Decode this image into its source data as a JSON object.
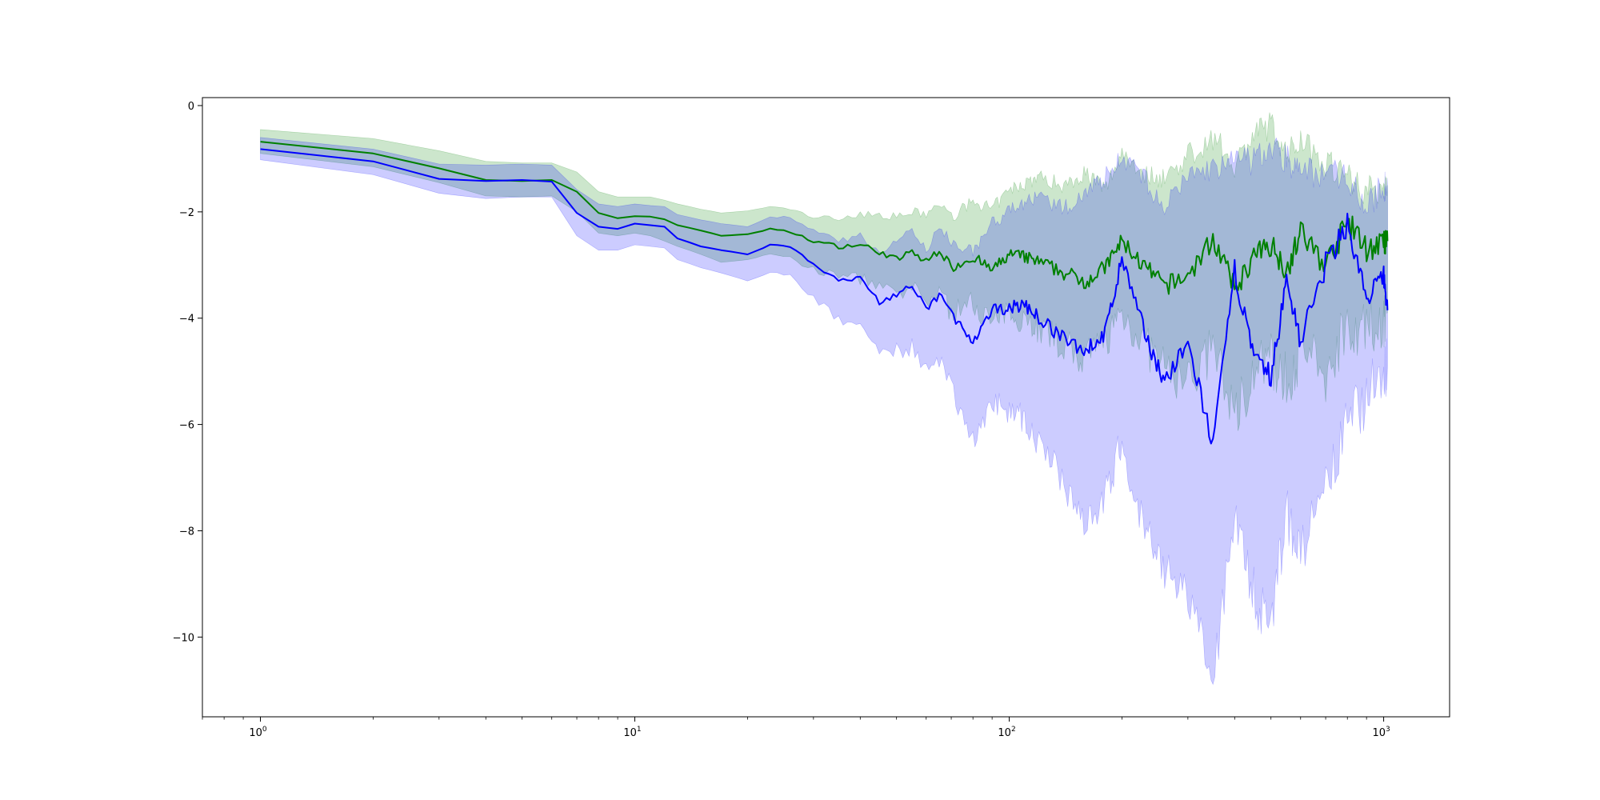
{
  "chart_data": {
    "type": "line",
    "title": "",
    "xlabel": "",
    "ylabel": "",
    "x_scale": "log",
    "xlim": [
      0.7,
      1500
    ],
    "ylim": [
      -11.5,
      0.15
    ],
    "grid": false,
    "legend": "none",
    "x_tick_labels": [
      {
        "base": "10",
        "exp": "0",
        "value": 1
      },
      {
        "base": "10",
        "exp": "1",
        "value": 10
      },
      {
        "base": "10",
        "exp": "2",
        "value": 100
      },
      {
        "base": "10",
        "exp": "3",
        "value": 1000
      }
    ],
    "y_tick_labels": [
      {
        "label": "0",
        "value": 0
      },
      {
        "label": "−2",
        "value": -2
      },
      {
        "label": "−4",
        "value": -4
      },
      {
        "label": "−6",
        "value": -6
      },
      {
        "label": "−8",
        "value": -8
      },
      {
        "label": "−10",
        "value": -10
      }
    ],
    "series": [
      {
        "color": "#008000",
        "band_color": "#008000",
        "band_opacity": 0.2,
        "x": [
          1,
          2,
          3,
          4,
          5,
          6,
          7,
          8,
          9,
          10,
          11,
          12,
          13,
          15,
          17,
          20,
          23,
          26,
          30,
          35,
          40,
          45,
          50,
          55,
          60,
          65,
          70,
          80,
          90,
          100,
          110,
          120,
          140,
          160,
          180,
          200,
          230,
          260,
          300,
          350,
          400,
          450,
          500,
          550,
          600,
          700,
          800,
          900,
          1000,
          1024
        ],
        "mean": [
          -0.68,
          -0.9,
          -1.18,
          -1.4,
          -1.42,
          -1.4,
          -1.62,
          -2.02,
          -2.12,
          -2.08,
          -2.09,
          -2.14,
          -2.25,
          -2.35,
          -2.45,
          -2.42,
          -2.32,
          -2.38,
          -2.55,
          -2.65,
          -2.62,
          -2.75,
          -2.9,
          -2.75,
          -2.95,
          -2.7,
          -3.05,
          -2.85,
          -3.1,
          -2.8,
          -2.85,
          -2.95,
          -3.15,
          -3.3,
          -3.05,
          -2.55,
          -3.05,
          -3.4,
          -3.2,
          -2.5,
          -3.45,
          -2.85,
          -2.6,
          -3.1,
          -2.4,
          -3.0,
          -2.2,
          -2.7,
          -2.6,
          -2.55
        ],
        "lower": [
          -0.9,
          -1.15,
          -1.45,
          -1.7,
          -1.72,
          -1.7,
          -2.0,
          -2.4,
          -2.45,
          -2.4,
          -2.45,
          -2.55,
          -2.65,
          -2.8,
          -2.95,
          -2.9,
          -2.8,
          -2.85,
          -3.1,
          -3.2,
          -3.25,
          -3.4,
          -3.6,
          -3.45,
          -3.7,
          -3.5,
          -3.9,
          -3.7,
          -4.1,
          -3.9,
          -4.0,
          -4.2,
          -4.5,
          -4.8,
          -4.4,
          -3.9,
          -4.5,
          -5.0,
          -5.2,
          -4.6,
          -5.8,
          -5.0,
          -4.8,
          -5.2,
          -4.6,
          -5.1,
          -4.0,
          -4.3,
          -4.0,
          -3.9
        ],
        "upper": [
          -0.45,
          -0.62,
          -0.85,
          -1.05,
          -1.08,
          -1.08,
          -1.25,
          -1.62,
          -1.72,
          -1.72,
          -1.72,
          -1.78,
          -1.85,
          -1.95,
          -2.02,
          -1.98,
          -1.9,
          -1.95,
          -2.1,
          -2.12,
          -2.05,
          -2.05,
          -2.1,
          -2.0,
          -2.05,
          -1.85,
          -2.1,
          -1.8,
          -1.95,
          -1.6,
          -1.45,
          -1.35,
          -1.5,
          -1.25,
          -1.6,
          -0.85,
          -1.3,
          -1.35,
          -0.95,
          -0.6,
          -1.1,
          -0.55,
          -0.35,
          -0.95,
          -0.6,
          -1.05,
          -1.3,
          -1.6,
          -1.55,
          -1.5
        ]
      },
      {
        "color": "#0000ff",
        "band_color": "#0000ff",
        "band_opacity": 0.2,
        "x": [
          1,
          2,
          3,
          4,
          5,
          6,
          7,
          8,
          9,
          10,
          11,
          12,
          13,
          15,
          17,
          20,
          23,
          26,
          30,
          35,
          40,
          45,
          50,
          55,
          60,
          65,
          70,
          80,
          90,
          100,
          110,
          120,
          140,
          160,
          180,
          200,
          230,
          260,
          300,
          350,
          400,
          450,
          500,
          550,
          600,
          700,
          800,
          900,
          1000,
          1024
        ],
        "mean": [
          -0.82,
          -1.05,
          -1.38,
          -1.42,
          -1.4,
          -1.43,
          -2.02,
          -2.28,
          -2.32,
          -2.22,
          -2.25,
          -2.28,
          -2.5,
          -2.65,
          -2.72,
          -2.8,
          -2.62,
          -2.65,
          -2.98,
          -3.3,
          -3.25,
          -3.7,
          -3.55,
          -3.4,
          -3.85,
          -3.55,
          -3.9,
          -4.5,
          -3.85,
          -3.8,
          -3.75,
          -4.0,
          -4.4,
          -4.6,
          -4.3,
          -2.9,
          -4.3,
          -5.2,
          -4.5,
          -6.4,
          -3.1,
          -4.8,
          -5.1,
          -3.3,
          -4.4,
          -3.0,
          -2.2,
          -3.7,
          -3.2,
          -3.85
        ],
        "lower": [
          -1.02,
          -1.3,
          -1.65,
          -1.75,
          -1.72,
          -1.72,
          -2.45,
          -2.72,
          -2.72,
          -2.62,
          -2.65,
          -2.68,
          -2.9,
          -3.05,
          -3.15,
          -3.3,
          -3.15,
          -3.2,
          -3.6,
          -4.05,
          -4.1,
          -4.6,
          -4.6,
          -4.55,
          -5.0,
          -4.85,
          -5.3,
          -6.3,
          -5.6,
          -5.7,
          -5.9,
          -6.4,
          -7.1,
          -7.8,
          -7.4,
          -6.3,
          -8.0,
          -8.8,
          -9.2,
          -10.9,
          -7.5,
          -9.2,
          -9.8,
          -7.6,
          -8.5,
          -7.3,
          -6.0,
          -5.5,
          -4.9,
          -4.9
        ],
        "upper": [
          -0.6,
          -0.82,
          -1.1,
          -1.12,
          -1.1,
          -1.12,
          -1.58,
          -1.85,
          -1.9,
          -1.85,
          -1.88,
          -1.9,
          -2.05,
          -2.15,
          -2.22,
          -2.28,
          -2.1,
          -2.1,
          -2.35,
          -2.55,
          -2.45,
          -2.8,
          -2.55,
          -2.3,
          -2.75,
          -2.3,
          -2.55,
          -2.75,
          -2.2,
          -2.0,
          -1.8,
          -1.75,
          -1.95,
          -1.6,
          -1.35,
          -0.95,
          -1.4,
          -1.95,
          -1.3,
          -1.2,
          -1.05,
          -1.05,
          -0.75,
          -1.0,
          -1.25,
          -1.25,
          -1.3,
          -1.95,
          -1.5,
          -1.6
        ]
      }
    ]
  }
}
